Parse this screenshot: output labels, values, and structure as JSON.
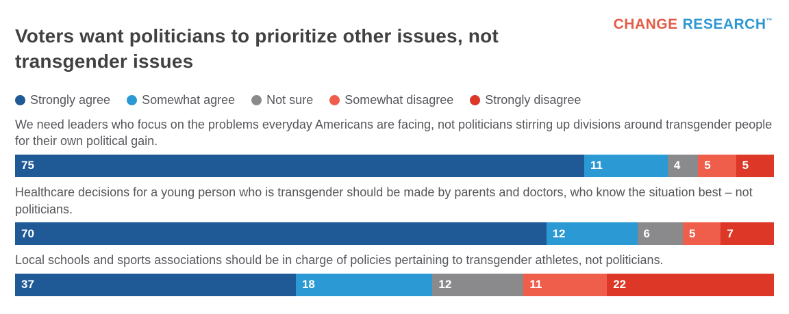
{
  "header": {
    "title": "Voters want politicians to prioritize other issues, not transgender issues",
    "logo": {
      "word1": "CHANGE",
      "word2": "RESEARCH",
      "trademark": "™"
    }
  },
  "colors": {
    "strongly_agree": "#1f5a96",
    "somewhat_agree": "#2b99d3",
    "not_sure": "#8a8a8c",
    "somewhat_disagree": "#ef5e4a",
    "strongly_disagree": "#dc3727",
    "logo_change": "#e45b47",
    "logo_research": "#2e97d1",
    "title_text": "#414042",
    "body_text": "#56575b",
    "bar_value_text": "#ffffff"
  },
  "chart_data": {
    "type": "bar",
    "subtype": "horizontal-stacked-100-percent",
    "title": "Voters want politicians to prioritize other issues, not transgender issues",
    "legend_position": "top",
    "legend": [
      "Strongly agree",
      "Somewhat agree",
      "Not sure",
      "Somewhat disagree",
      "Strongly disagree"
    ],
    "series_colors": [
      "#1f5a96",
      "#2b99d3",
      "#8a8a8c",
      "#ef5e4a",
      "#dc3727"
    ],
    "categories": [
      "We need leaders who focus on the problems everyday Americans are facing, not politicians stirring up divisions around transgender people for their own political gain.",
      "Healthcare decisions for a young person who is transgender should be made by parents and doctors, who know the situation best – not politicians.",
      "Local schools and sports associations should be in charge of policies pertaining to transgender athletes, not politicians."
    ],
    "series": [
      {
        "name": "Strongly agree",
        "values": [
          75,
          70,
          37
        ]
      },
      {
        "name": "Somewhat agree",
        "values": [
          11,
          12,
          18
        ]
      },
      {
        "name": "Not sure",
        "values": [
          4,
          6,
          12
        ]
      },
      {
        "name": "Somewhat disagree",
        "values": [
          5,
          5,
          11
        ]
      },
      {
        "name": "Strongly disagree",
        "values": [
          5,
          7,
          22
        ]
      }
    ],
    "xlim": [
      0,
      100
    ],
    "grid": false,
    "value_labels": "inside-start"
  }
}
